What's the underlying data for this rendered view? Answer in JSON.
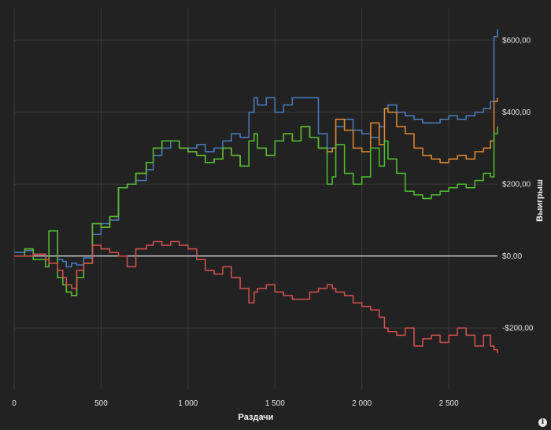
{
  "chart_data": {
    "type": "line",
    "xlabel": "Раздачи",
    "ylabel": "Выигрыш",
    "xlim": [
      0,
      2780
    ],
    "ylim": [
      -370,
      690
    ],
    "x_ticks": [
      {
        "value": 0,
        "label": "0"
      },
      {
        "value": 500,
        "label": "500"
      },
      {
        "value": 1000,
        "label": "1 000"
      },
      {
        "value": 1500,
        "label": "1 500"
      },
      {
        "value": 2000,
        "label": "2 000"
      },
      {
        "value": 2500,
        "label": "2 500"
      }
    ],
    "y_ticks": [
      {
        "value": 600,
        "label": "$600,00"
      },
      {
        "value": 400,
        "label": "$400,00"
      },
      {
        "value": 200,
        "label": "$200,00"
      },
      {
        "value": 0,
        "label": "$0,00"
      },
      {
        "value": -200,
        "label": "-$200,00"
      }
    ],
    "y_axis_position": "right",
    "grid": true,
    "series": [
      {
        "color": "#4a7fc1",
        "x": [
          0,
          60,
          110,
          180,
          200,
          250,
          280,
          300,
          330,
          360,
          400,
          450,
          500,
          550,
          600,
          650,
          700,
          760,
          800,
          850,
          900,
          950,
          1000,
          1050,
          1100,
          1150,
          1200,
          1250,
          1300,
          1350,
          1380,
          1400,
          1450,
          1500,
          1550,
          1600,
          1650,
          1700,
          1750,
          1800,
          1830,
          1850,
          1900,
          1950,
          2000,
          2050,
          2100,
          2130,
          2150,
          2200,
          2250,
          2300,
          2350,
          2400,
          2450,
          2500,
          2550,
          2600,
          2650,
          2700,
          2740,
          2760,
          2780
        ],
        "y": [
          10,
          15,
          5,
          -10,
          70,
          -10,
          -15,
          -30,
          -20,
          -25,
          -5,
          60,
          90,
          100,
          190,
          200,
          210,
          240,
          280,
          300,
          320,
          300,
          300,
          310,
          290,
          300,
          320,
          340,
          330,
          400,
          440,
          420,
          440,
          400,
          420,
          440,
          440,
          440,
          340,
          300,
          300,
          360,
          380,
          350,
          340,
          330,
          360,
          410,
          420,
          400,
          390,
          380,
          370,
          370,
          380,
          390,
          380,
          390,
          400,
          410,
          430,
          610,
          630
        ]
      },
      {
        "color": "#e58a2e",
        "x": [
          0,
          60,
          110,
          180,
          200,
          250,
          280,
          300,
          330,
          360,
          400,
          450,
          500,
          550,
          600,
          650,
          700,
          760,
          800,
          850,
          900,
          950,
          1000,
          1050,
          1100,
          1150,
          1200,
          1250,
          1300,
          1350,
          1380,
          1400,
          1450,
          1500,
          1550,
          1600,
          1650,
          1700,
          1750,
          1800,
          1830,
          1850,
          1900,
          1950,
          2000,
          2050,
          2100,
          2130,
          2150,
          2200,
          2250,
          2300,
          2350,
          2400,
          2450,
          2500,
          2550,
          2600,
          2650,
          2700,
          2740,
          2760,
          2780
        ],
        "y": [
          0,
          20,
          -10,
          -30,
          70,
          -60,
          -80,
          -100,
          -110,
          -60,
          -20,
          90,
          80,
          110,
          190,
          200,
          230,
          260,
          300,
          320,
          320,
          300,
          290,
          280,
          260,
          270,
          300,
          280,
          250,
          320,
          340,
          300,
          280,
          320,
          340,
          320,
          360,
          330,
          300,
          290,
          300,
          380,
          350,
          300,
          290,
          370,
          310,
          410,
          400,
          360,
          340,
          300,
          280,
          270,
          260,
          270,
          280,
          270,
          290,
          300,
          320,
          430,
          440
        ]
      },
      {
        "color": "#4fbf2f",
        "x": [
          0,
          60,
          110,
          180,
          200,
          250,
          280,
          300,
          330,
          360,
          400,
          450,
          500,
          550,
          600,
          650,
          700,
          760,
          800,
          850,
          900,
          950,
          1000,
          1050,
          1100,
          1150,
          1200,
          1250,
          1300,
          1350,
          1380,
          1400,
          1450,
          1500,
          1550,
          1600,
          1650,
          1700,
          1750,
          1800,
          1830,
          1850,
          1900,
          1950,
          2000,
          2050,
          2100,
          2130,
          2150,
          2200,
          2250,
          2300,
          2350,
          2400,
          2450,
          2500,
          2550,
          2600,
          2650,
          2700,
          2740,
          2760,
          2780
        ],
        "y": [
          0,
          20,
          -10,
          -30,
          70,
          -60,
          -80,
          -100,
          -110,
          -60,
          -20,
          90,
          80,
          110,
          190,
          200,
          230,
          260,
          300,
          320,
          320,
          300,
          290,
          280,
          260,
          270,
          300,
          280,
          250,
          320,
          340,
          300,
          280,
          320,
          340,
          320,
          360,
          330,
          300,
          200,
          220,
          310,
          230,
          200,
          220,
          300,
          250,
          320,
          270,
          230,
          180,
          170,
          160,
          170,
          180,
          190,
          200,
          190,
          210,
          230,
          220,
          340,
          360
        ]
      },
      {
        "color": "#d9534f",
        "x": [
          0,
          60,
          110,
          180,
          200,
          250,
          280,
          300,
          330,
          360,
          400,
          450,
          500,
          550,
          600,
          650,
          700,
          760,
          800,
          850,
          900,
          950,
          1000,
          1050,
          1100,
          1150,
          1200,
          1250,
          1300,
          1350,
          1380,
          1400,
          1450,
          1500,
          1550,
          1600,
          1650,
          1700,
          1750,
          1800,
          1830,
          1850,
          1900,
          1950,
          2000,
          2050,
          2100,
          2130,
          2150,
          2200,
          2250,
          2300,
          2350,
          2400,
          2450,
          2500,
          2550,
          2600,
          2650,
          2700,
          2740,
          2760,
          2780
        ],
        "y": [
          0,
          0,
          5,
          -10,
          -20,
          -40,
          -60,
          -80,
          -90,
          -40,
          -20,
          30,
          20,
          10,
          0,
          -30,
          20,
          30,
          40,
          30,
          40,
          30,
          20,
          -10,
          -40,
          -50,
          -30,
          -60,
          -90,
          -130,
          -100,
          -90,
          -80,
          -100,
          -110,
          -120,
          -120,
          -100,
          -90,
          -80,
          -90,
          -100,
          -110,
          -130,
          -140,
          -150,
          -170,
          -200,
          -210,
          -220,
          -200,
          -250,
          -230,
          -220,
          -240,
          -220,
          -200,
          -220,
          -250,
          -220,
          -250,
          -260,
          -270
        ]
      }
    ]
  },
  "ui": {
    "info_icon": "info-icon",
    "info_symbol": "i"
  }
}
